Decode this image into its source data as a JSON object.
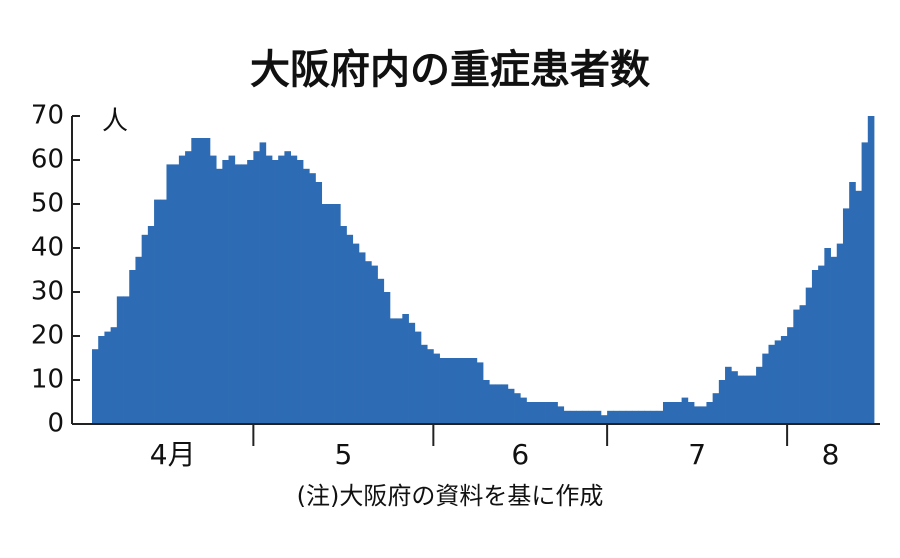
{
  "chart_data": {
    "type": "bar",
    "title": "大阪府内の重症患者数",
    "y_unit": "人",
    "note": "(注)大阪府の資料を基に作成",
    "color": "#2d6cb4",
    "ylim": [
      0,
      70
    ],
    "yticks": [
      0,
      10,
      20,
      30,
      40,
      50,
      60,
      70
    ],
    "month_labels": [
      "4月",
      "5",
      "6",
      "7",
      "8"
    ],
    "month_starts": [
      26,
      55,
      83,
      112
    ],
    "values": [
      17,
      20,
      21,
      22,
      29,
      29,
      35,
      38,
      43,
      45,
      51,
      51,
      59,
      59,
      61,
      62,
      65,
      65,
      65,
      61,
      58,
      60,
      61,
      59,
      59,
      60,
      62,
      64,
      61,
      60,
      61,
      62,
      61,
      60,
      58,
      57,
      55,
      50,
      50,
      50,
      45,
      43,
      41,
      39,
      37,
      36,
      33,
      30,
      24,
      24,
      25,
      23,
      21,
      18,
      17,
      16,
      15,
      15,
      15,
      15,
      15,
      15,
      14,
      10,
      9,
      9,
      9,
      8,
      7,
      6,
      5,
      5,
      5,
      5,
      5,
      4,
      3,
      3,
      3,
      3,
      3,
      3,
      2,
      3,
      3,
      3,
      3,
      3,
      3,
      3,
      3,
      3,
      5,
      5,
      5,
      6,
      5,
      4,
      4,
      5,
      7,
      10,
      13,
      12,
      11,
      11,
      11,
      13,
      16,
      18,
      19,
      20,
      22,
      26,
      27,
      31,
      35,
      36,
      40,
      38,
      41,
      49,
      55,
      53,
      64,
      70
    ]
  }
}
